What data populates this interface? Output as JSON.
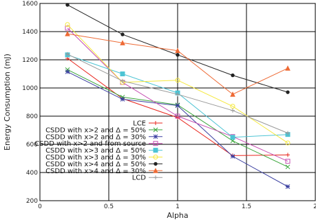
{
  "chart_data": {
    "type": "line",
    "title": "",
    "xlabel": "Alpha",
    "ylabel": "Energy Consumption (mJ)",
    "xlim": [
      0,
      2
    ],
    "ylim": [
      200,
      1600
    ],
    "xticks": [
      0,
      0.5,
      1,
      1.5,
      2
    ],
    "xtick_labels": [
      "0",
      "0.5",
      "1",
      "1.5",
      "2"
    ],
    "yticks": [
      200,
      400,
      600,
      800,
      1000,
      1200,
      1400,
      1600
    ],
    "ytick_labels": [
      "200",
      "400",
      "600",
      "800",
      "1000",
      "1200",
      "1400",
      "1600"
    ],
    "grid": true,
    "legend_position": "bottom-left-inside",
    "x": [
      0.2,
      0.6,
      1.0,
      1.4,
      1.8
    ],
    "series": [
      {
        "name": "LCE",
        "color": "#e8261d",
        "marker": "plus",
        "values": [
          1210,
          925,
          790,
          520,
          525
        ]
      },
      {
        "name": "CSDD with x>2 and Δ = 50%",
        "color": "#39a53a",
        "marker": "x",
        "values": [
          1130,
          935,
          880,
          625,
          440
        ]
      },
      {
        "name": "CSDD with x>2 and Δ = 30%",
        "color": "#3a3fa0",
        "marker": "star",
        "values": [
          1115,
          920,
          875,
          515,
          300
        ]
      },
      {
        "name": "CSDD with x>2 and from source",
        "color": "#c64fb2",
        "marker": "square",
        "values": [
          1425,
          1040,
          800,
          655,
          480
        ]
      },
      {
        "name": "CSDD with x>3 and Δ = 50%",
        "color": "#4dc4d4",
        "marker": "filled-square",
        "values": [
          1235,
          1100,
          965,
          650,
          670
        ]
      },
      {
        "name": "CSDD with x>3 and Δ = 30%",
        "color": "#f5e83c",
        "marker": "circle",
        "values": [
          1450,
          1040,
          1055,
          870,
          610
        ]
      },
      {
        "name": "CSDD with x>4 and Δ = 50%",
        "color": "#222222",
        "marker": "filled-circle",
        "values": [
          1590,
          1380,
          1235,
          1090,
          970
        ]
      },
      {
        "name": "CSDD with x>4 and Δ = 30%",
        "color": "#ee6a35",
        "marker": "triangle",
        "values": [
          1385,
          1320,
          1265,
          955,
          1140
        ]
      },
      {
        "name": "LCD",
        "color": "#999999",
        "marker": "plus",
        "values": [
          1240,
          1050,
          955,
          840,
          680
        ]
      }
    ]
  }
}
